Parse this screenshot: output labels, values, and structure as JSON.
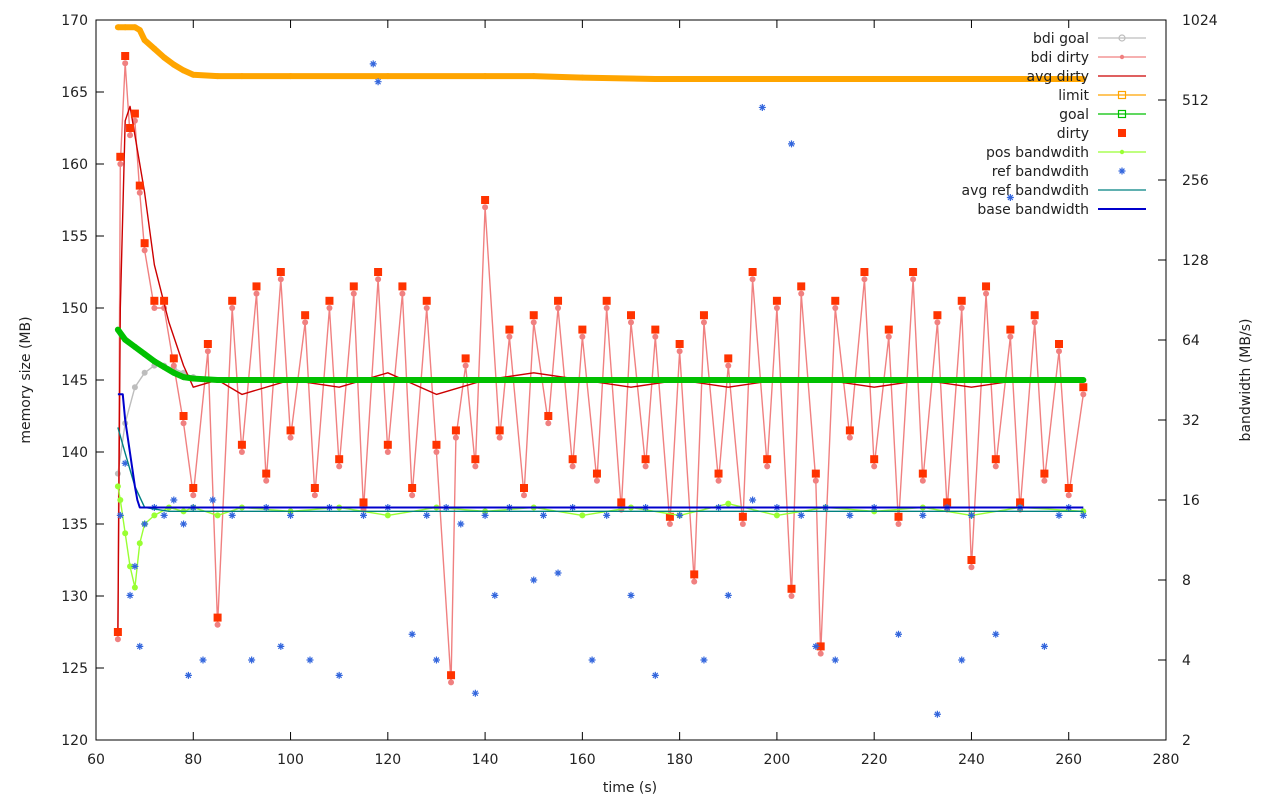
{
  "chart_data": {
    "type": "scatter",
    "xlabel": "time (s)",
    "ylabel": "memory size (MB)",
    "y2label": "bandwidth (MB/s)",
    "xlim": [
      60,
      280
    ],
    "ylim": [
      120,
      170
    ],
    "y2lim": [
      2,
      1024
    ],
    "y2scale": "log2",
    "x_ticks": [
      60,
      80,
      100,
      120,
      140,
      160,
      180,
      200,
      220,
      240,
      260,
      280
    ],
    "y_ticks": [
      120,
      125,
      130,
      135,
      140,
      145,
      150,
      155,
      160,
      165,
      170
    ],
    "y2_ticks": [
      2,
      4,
      8,
      16,
      32,
      64,
      128,
      256,
      512,
      1024
    ],
    "grid": false,
    "legend_position": "top-right",
    "series": [
      {
        "name": "bdi goal",
        "axis": "y",
        "color": "#bdbdbd",
        "style": "line-marker",
        "x": [
          64.5,
          66,
          68,
          70,
          72,
          74,
          76,
          78,
          80,
          85,
          90,
          100,
          120,
          140,
          160,
          180,
          200,
          220,
          240,
          263
        ],
        "y": [
          138.5,
          142.0,
          144.5,
          145.5,
          146.0,
          146.0,
          145.8,
          145.5,
          145.2,
          145.0,
          145.0,
          145.0,
          145.0,
          145.0,
          145.0,
          145.0,
          145.0,
          145.0,
          145.0,
          145.0
        ]
      },
      {
        "name": "bdi dirty",
        "axis": "y",
        "color": "#f08080",
        "style": "line-marker",
        "x": [
          64.5,
          65,
          66,
          67,
          68,
          69,
          70,
          72,
          74,
          76,
          78,
          80,
          83,
          85,
          88,
          90,
          93,
          95,
          98,
          100,
          103,
          105,
          108,
          110,
          113,
          115,
          118,
          120,
          123,
          125,
          128,
          130,
          133,
          134,
          136,
          138,
          140,
          143,
          145,
          148,
          150,
          153,
          155,
          158,
          160,
          163,
          165,
          168,
          170,
          173,
          175,
          178,
          180,
          183,
          185,
          188,
          190,
          193,
          195,
          198,
          200,
          203,
          205,
          208,
          209,
          212,
          215,
          218,
          220,
          223,
          225,
          228,
          230,
          233,
          235,
          238,
          240,
          243,
          245,
          248,
          250,
          253,
          255,
          258,
          260,
          263
        ],
        "y": [
          127.0,
          160.0,
          167.0,
          162.0,
          163.0,
          158.0,
          154.0,
          150.0,
          150.0,
          146.0,
          142.0,
          137.0,
          147.0,
          128.0,
          150.0,
          140.0,
          151.0,
          138.0,
          152.0,
          141.0,
          149.0,
          137.0,
          150.0,
          139.0,
          151.0,
          136.0,
          152.0,
          140.0,
          151.0,
          137.0,
          150.0,
          140.0,
          124.0,
          141.0,
          146.0,
          139.0,
          157.0,
          141.0,
          148.0,
          137.0,
          149.0,
          142.0,
          150.0,
          139.0,
          148.0,
          138.0,
          150.0,
          136.0,
          149.0,
          139.0,
          148.0,
          135.0,
          147.0,
          131.0,
          149.0,
          138.0,
          146.0,
          135.0,
          152.0,
          139.0,
          150.0,
          130.0,
          151.0,
          138.0,
          126.0,
          150.0,
          141.0,
          152.0,
          139.0,
          148.0,
          135.0,
          152.0,
          138.0,
          149.0,
          136.0,
          150.0,
          132.0,
          151.0,
          139.0,
          148.0,
          136.0,
          149.0,
          138.0,
          147.0,
          137.0,
          144.0
        ]
      },
      {
        "name": "avg dirty",
        "axis": "y",
        "color": "#cc0000",
        "style": "line",
        "x": [
          64.5,
          65,
          66,
          67,
          68,
          70,
          72,
          75,
          78,
          80,
          85,
          90,
          100,
          110,
          120,
          130,
          140,
          150,
          160,
          170,
          180,
          190,
          200,
          210,
          220,
          230,
          240,
          250,
          263
        ],
        "y": [
          127.5,
          150.0,
          163.0,
          164.0,
          162.0,
          158.0,
          153.0,
          149.0,
          146.0,
          144.5,
          145.0,
          144.0,
          145.0,
          144.5,
          145.5,
          144.0,
          145.0,
          145.5,
          145.0,
          144.5,
          145.0,
          144.5,
          145.0,
          145.0,
          144.5,
          145.0,
          144.5,
          145.0,
          145.0
        ]
      },
      {
        "name": "limit",
        "axis": "y",
        "color": "#ffa500",
        "style": "line-marker",
        "x": [
          64.5,
          66,
          68,
          69,
          70,
          72,
          74,
          76,
          78,
          80,
          85,
          90,
          100,
          120,
          140,
          150,
          160,
          175,
          180,
          200,
          220,
          240,
          263
        ],
        "y": [
          169.5,
          169.5,
          169.5,
          169.3,
          168.6,
          168.0,
          167.4,
          166.9,
          166.5,
          166.2,
          166.1,
          166.1,
          166.1,
          166.1,
          166.1,
          166.1,
          166.0,
          165.9,
          165.9,
          165.9,
          165.9,
          165.9,
          165.9
        ]
      },
      {
        "name": "goal",
        "axis": "y",
        "color": "#00c000",
        "style": "line-marker",
        "x": [
          64.5,
          66,
          68,
          70,
          72,
          74,
          76,
          78,
          80,
          85,
          90,
          100,
          120,
          140,
          160,
          180,
          200,
          220,
          240,
          263
        ],
        "y": [
          148.5,
          147.8,
          147.3,
          146.8,
          146.3,
          145.9,
          145.5,
          145.2,
          145.1,
          145.0,
          145.0,
          145.0,
          145.0,
          145.0,
          145.0,
          145.0,
          145.0,
          145.0,
          145.0,
          145.0
        ]
      },
      {
        "name": "dirty",
        "axis": "y",
        "color": "#ff3300",
        "style": "marker-square",
        "x": [
          64.5,
          65,
          66,
          67,
          68,
          69,
          70,
          72,
          74,
          76,
          78,
          80,
          83,
          85,
          88,
          90,
          93,
          95,
          98,
          100,
          103,
          105,
          108,
          110,
          113,
          115,
          118,
          120,
          123,
          125,
          128,
          130,
          133,
          134,
          136,
          138,
          140,
          143,
          145,
          148,
          150,
          153,
          155,
          158,
          160,
          163,
          165,
          168,
          170,
          173,
          175,
          178,
          180,
          183,
          185,
          188,
          190,
          193,
          195,
          198,
          200,
          203,
          205,
          208,
          209,
          212,
          215,
          218,
          220,
          223,
          225,
          228,
          230,
          233,
          235,
          238,
          240,
          243,
          245,
          248,
          250,
          253,
          255,
          258,
          260,
          263
        ],
        "y": [
          127.5,
          160.5,
          167.5,
          162.5,
          163.5,
          158.5,
          154.5,
          150.5,
          150.5,
          146.5,
          142.5,
          137.5,
          147.5,
          128.5,
          150.5,
          140.5,
          151.5,
          138.5,
          152.5,
          141.5,
          149.5,
          137.5,
          150.5,
          139.5,
          151.5,
          136.5,
          152.5,
          140.5,
          151.5,
          137.5,
          150.5,
          140.5,
          124.5,
          141.5,
          146.5,
          139.5,
          157.5,
          141.5,
          148.5,
          137.5,
          149.5,
          142.5,
          150.5,
          139.5,
          148.5,
          138.5,
          150.5,
          136.5,
          149.5,
          139.5,
          148.5,
          135.5,
          147.5,
          131.5,
          149.5,
          138.5,
          146.5,
          135.5,
          152.5,
          139.5,
          150.5,
          130.5,
          151.5,
          138.5,
          126.5,
          150.5,
          141.5,
          152.5,
          139.5,
          148.5,
          135.5,
          152.5,
          138.5,
          149.5,
          136.5,
          150.5,
          132.5,
          151.5,
          139.5,
          148.5,
          136.5,
          149.5,
          138.5,
          147.5,
          137.5,
          144.5
        ]
      },
      {
        "name": "pos bandwdith",
        "axis": "y2",
        "color": "#99ff33",
        "style": "line-marker",
        "x": [
          64.5,
          65,
          66,
          67,
          68,
          69,
          70,
          72,
          75,
          78,
          80,
          85,
          90,
          100,
          110,
          120,
          130,
          140,
          150,
          160,
          170,
          180,
          190,
          200,
          210,
          220,
          230,
          240,
          250,
          263
        ],
        "y": [
          18,
          16,
          12,
          9,
          7.5,
          11,
          13,
          14,
          15,
          14.5,
          15,
          14,
          15,
          14.5,
          15,
          14,
          15,
          14.5,
          15,
          14,
          15,
          14,
          15.5,
          14,
          15,
          14.5,
          15,
          14,
          15,
          14.5
        ]
      },
      {
        "name": "ref bandwdith",
        "axis": "y2",
        "color": "#3366dd",
        "style": "marker-star",
        "x": [
          65,
          66,
          67,
          68,
          69,
          70,
          72,
          74,
          76,
          78,
          79,
          80,
          82,
          84,
          88,
          92,
          95,
          98,
          100,
          104,
          108,
          110,
          115,
          117,
          118,
          120,
          125,
          128,
          130,
          132,
          135,
          138,
          140,
          142,
          145,
          150,
          152,
          155,
          158,
          162,
          165,
          170,
          173,
          175,
          180,
          185,
          188,
          190,
          195,
          197,
          200,
          203,
          205,
          208,
          210,
          212,
          215,
          220,
          225,
          230,
          233,
          235,
          238,
          240,
          245,
          248,
          250,
          255,
          258,
          260,
          263
        ],
        "y": [
          14,
          22,
          7,
          9,
          4.5,
          13,
          15,
          14,
          16,
          13,
          3.5,
          15,
          4,
          16,
          14,
          4,
          15,
          4.5,
          14,
          4,
          15,
          3.5,
          14,
          700,
          600,
          15,
          5,
          14,
          4,
          15,
          13,
          3,
          14,
          7,
          15,
          8,
          14,
          8.5,
          15,
          4,
          14,
          7,
          15,
          3.5,
          14,
          4,
          15,
          7,
          16,
          480,
          15,
          350,
          14,
          4.5,
          15,
          4,
          14,
          15,
          5,
          14,
          2.5,
          15,
          4,
          14,
          5,
          220,
          15,
          4.5,
          14,
          15,
          14
        ]
      },
      {
        "name": "avg ref bandwdith",
        "axis": "y2",
        "color": "#008080",
        "style": "line",
        "x": [
          64.5,
          66,
          68,
          70,
          75,
          80,
          100,
          120,
          140,
          160,
          180,
          200,
          220,
          240,
          263
        ],
        "y": [
          30,
          24,
          18,
          15,
          14.5,
          14.5,
          14.5,
          14.5,
          14.5,
          14.5,
          14.5,
          14.5,
          14.5,
          14.5,
          14.5
        ]
      },
      {
        "name": "base bandwidth",
        "axis": "y2",
        "color": "#0000cc",
        "style": "line",
        "x": [
          64.5,
          65.5,
          66,
          67,
          68,
          68.5,
          69,
          70,
          75,
          80,
          100,
          120,
          140,
          160,
          180,
          200,
          220,
          240,
          263
        ],
        "y": [
          40,
          40,
          32,
          24,
          18,
          16,
          15,
          15,
          15,
          15,
          15,
          15,
          15,
          15,
          15,
          15,
          15,
          15,
          15
        ]
      }
    ]
  }
}
